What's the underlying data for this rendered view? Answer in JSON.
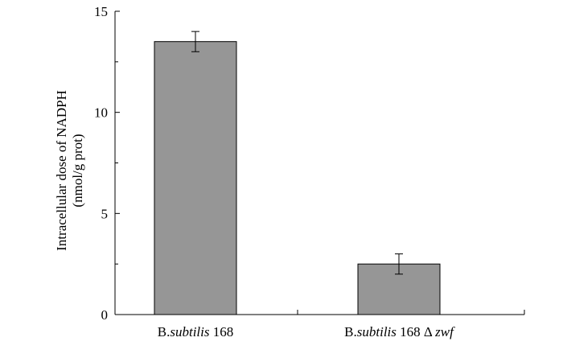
{
  "chart_data": {
    "type": "bar",
    "categories": [
      {
        "parts": [
          {
            "text": "B.",
            "italic": false
          },
          {
            "text": "subtilis",
            "italic": true
          },
          {
            "text": " 168",
            "italic": false
          }
        ]
      },
      {
        "parts": [
          {
            "text": "B.",
            "italic": false
          },
          {
            "text": "subtilis",
            "italic": true
          },
          {
            "text": " 168 Δ ",
            "italic": false
          },
          {
            "text": "zwf",
            "italic": true
          }
        ]
      }
    ],
    "values": [
      13.5,
      2.5
    ],
    "error": [
      0.5,
      0.5
    ],
    "ylabel_line1": "Intracellular dose of NADPH",
    "ylabel_line2": "(nmol/g prot)",
    "ylim": [
      0,
      15
    ],
    "yticks": [
      0,
      5,
      10,
      15
    ],
    "ytick_labels": [
      "0",
      "5",
      "10",
      "15"
    ],
    "grid": false,
    "colors": {
      "bar_fill": "#969696",
      "bar_stroke": "#000000",
      "axis": "#000000"
    }
  }
}
